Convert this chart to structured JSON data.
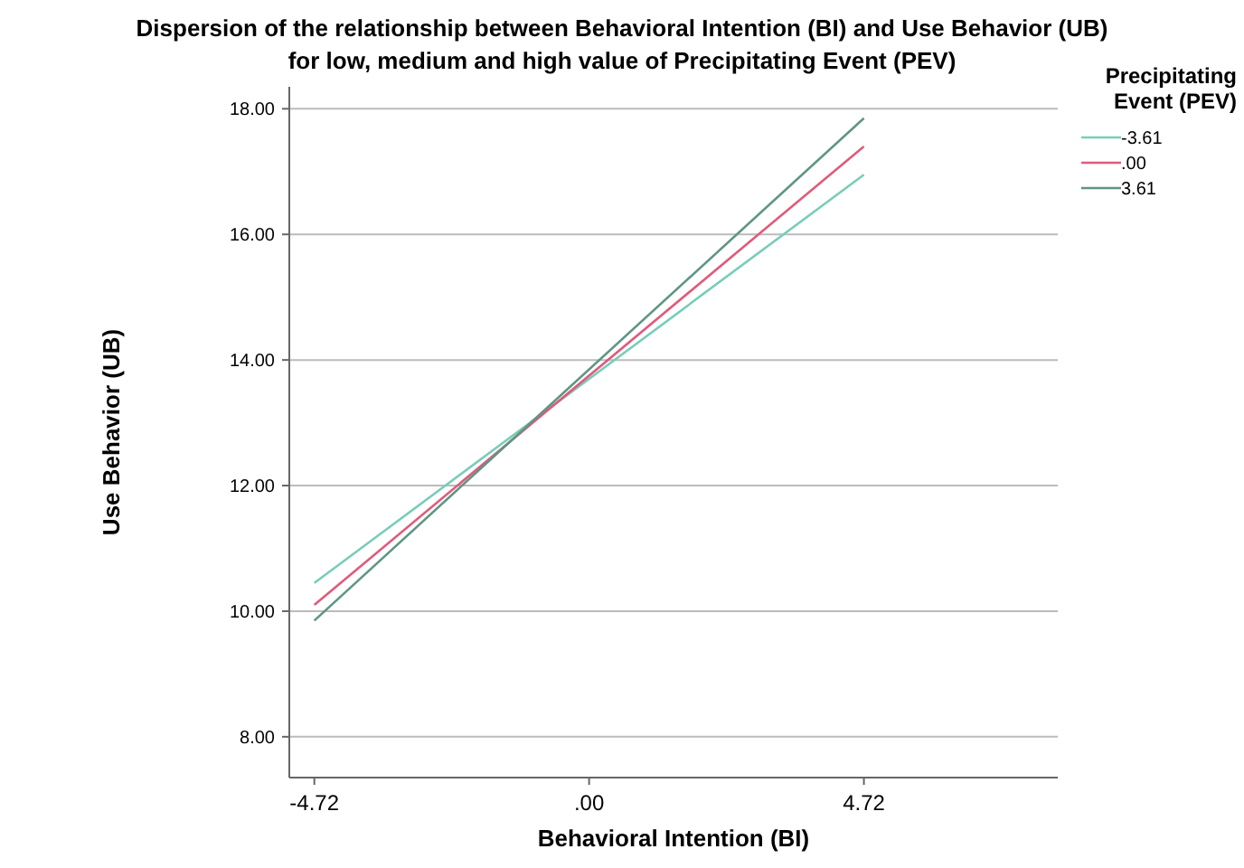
{
  "chart_data": {
    "type": "line",
    "title": "Dispersion of the relationship between Behavioral Intention (BI) and Use Behavior (UB)",
    "subtitle": "for low, medium and high value of Precipitating Event (PEV)",
    "xlabel": "Behavioral Intention (BI)",
    "ylabel": "Use Behavior (UB)",
    "legend_title": "Precipitating Event (PEV)",
    "x": [
      -4.72,
      4.72
    ],
    "series": [
      {
        "name": "-3.61",
        "color": "#78cdb9",
        "values": [
          10.45,
          16.95
        ]
      },
      {
        "name": ".00",
        "color": "#e05a7a",
        "values": [
          10.1,
          17.4
        ]
      },
      {
        "name": "3.61",
        "color": "#5f9585",
        "values": [
          9.85,
          17.85
        ]
      }
    ],
    "xlim": [
      -5.15,
      8.05
    ],
    "xticks": [
      {
        "value": -4.72,
        "label": "-4.72"
      },
      {
        "value": 0,
        "label": ".00"
      },
      {
        "value": 4.72,
        "label": "4.72"
      }
    ],
    "ylim": [
      7.35,
      18.35
    ],
    "yticks": [
      {
        "value": 8,
        "label": "8.00"
      },
      {
        "value": 10,
        "label": "10.00"
      },
      {
        "value": 12,
        "label": "12.00"
      },
      {
        "value": 14,
        "label": "14.00"
      },
      {
        "value": 16,
        "label": "16.00"
      },
      {
        "value": 18,
        "label": "18.00"
      }
    ],
    "grid": "y",
    "legend": "top right",
    "marker": "none",
    "line_style": "solid"
  }
}
